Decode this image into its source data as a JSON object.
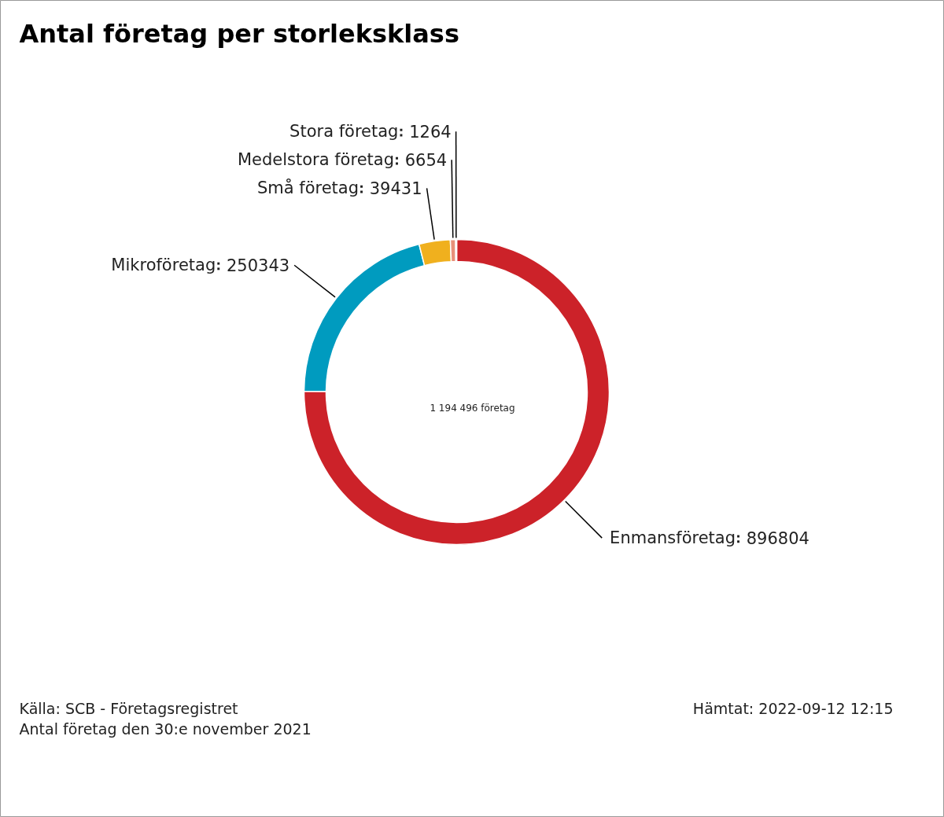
{
  "chart_data": {
    "type": "donut",
    "title": "Antal företag per storleksklass",
    "categories": [
      "Enmansföretag",
      "Mikroföretag",
      "Små företag",
      "Medelstora företag",
      "Stora företag"
    ],
    "values": [
      896804,
      250343,
      39431,
      6654,
      1264
    ],
    "colors": [
      "#cc2229",
      "#009bbf",
      "#f0b01e",
      "#e8907a",
      "#8b1a1a"
    ],
    "data_labels": true,
    "annotations": [
      "1 194 496 företag",
      "Källa: SCB - Företagsregistret",
      "Antal företag den 30:e november 2021",
      "Hämtat: 2022-09-12 12:15"
    ]
  }
}
